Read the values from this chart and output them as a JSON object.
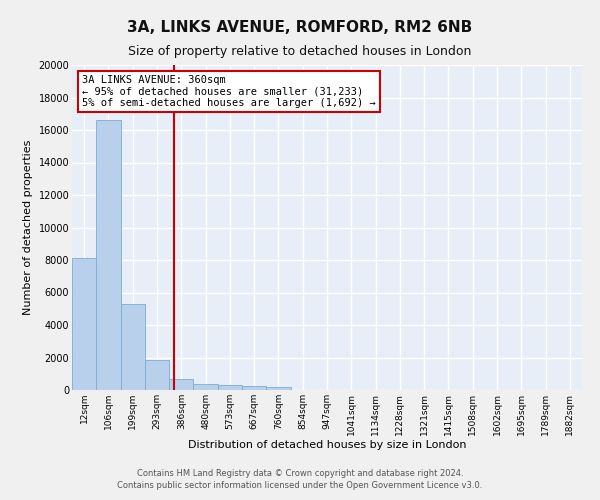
{
  "title1": "3A, LINKS AVENUE, ROMFORD, RM2 6NB",
  "title2": "Size of property relative to detached houses in London",
  "xlabel": "Distribution of detached houses by size in London",
  "ylabel": "Number of detached properties",
  "categories": [
    "12sqm",
    "106sqm",
    "199sqm",
    "293sqm",
    "386sqm",
    "480sqm",
    "573sqm",
    "667sqm",
    "760sqm",
    "854sqm",
    "947sqm",
    "1041sqm",
    "1134sqm",
    "1228sqm",
    "1321sqm",
    "1415sqm",
    "1508sqm",
    "1602sqm",
    "1695sqm",
    "1789sqm",
    "1882sqm"
  ],
  "values": [
    8100,
    16600,
    5300,
    1850,
    700,
    380,
    290,
    230,
    180,
    0,
    0,
    0,
    0,
    0,
    0,
    0,
    0,
    0,
    0,
    0,
    0
  ],
  "bar_color": "#b8d0eb",
  "bar_edge_color": "#7aadd4",
  "vline_color": "#cc0000",
  "vline_x_index": 3.72,
  "ylim": [
    0,
    20000
  ],
  "yticks": [
    0,
    2000,
    4000,
    6000,
    8000,
    10000,
    12000,
    14000,
    16000,
    18000,
    20000
  ],
  "annotation_line1": "3A LINKS AVENUE: 360sqm",
  "annotation_line2": "← 95% of detached houses are smaller (31,233)",
  "annotation_line3": "5% of semi-detached houses are larger (1,692) →",
  "box_edge_color": "#cc0000",
  "footnote1": "Contains HM Land Registry data © Crown copyright and database right 2024.",
  "footnote2": "Contains public sector information licensed under the Open Government Licence v3.0.",
  "plot_bg_color": "#e8eef7",
  "fig_bg_color": "#f0f0f0",
  "grid_color": "#ffffff",
  "title1_fontsize": 11,
  "title2_fontsize": 9,
  "tick_fontsize": 6.5,
  "ylabel_fontsize": 8,
  "xlabel_fontsize": 8,
  "footnote_fontsize": 6,
  "annot_fontsize": 7.5
}
